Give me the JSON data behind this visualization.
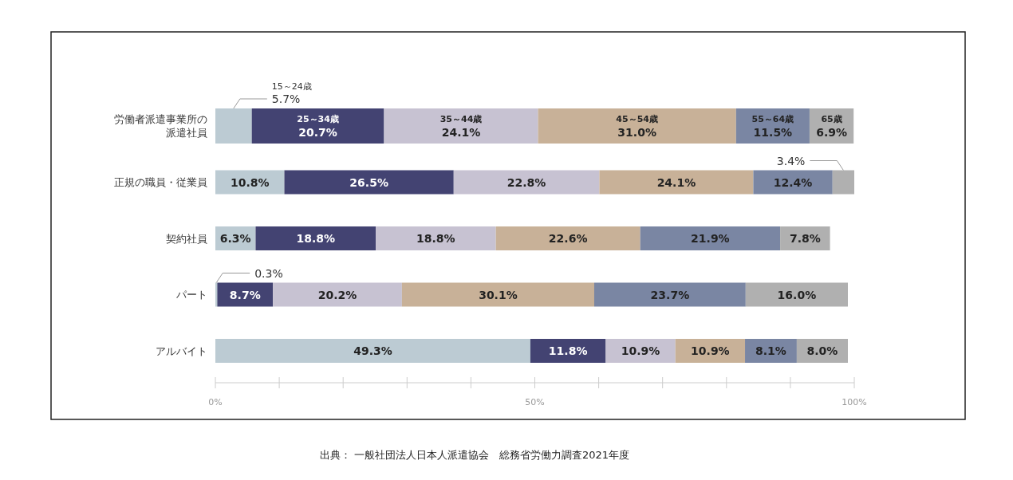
{
  "chart_data": {
    "type": "bar",
    "orientation": "horizontal",
    "stacked": true,
    "categories": [
      "労働者派遣事業所の派遣社員",
      "正規の職員・従業員",
      "契約社員",
      "パート",
      "アルバイト"
    ],
    "series": [
      {
        "name": "15～24歳",
        "color": "#bccbd3",
        "values": [
          5.7,
          10.8,
          6.3,
          0.3,
          49.3
        ],
        "value_labels": [
          "5.7%",
          "10.8%",
          "6.3%",
          "0.3%",
          "49.3%"
        ]
      },
      {
        "name": "25～34歳",
        "color": "#434372",
        "values": [
          20.7,
          26.5,
          18.8,
          8.7,
          11.8
        ],
        "value_labels": [
          "20.7%",
          "26.5%",
          "18.8%",
          "8.7%",
          "11.8%"
        ]
      },
      {
        "name": "35～44歳",
        "color": "#c7c2d2",
        "values": [
          24.1,
          22.8,
          18.8,
          20.2,
          10.9
        ],
        "value_labels": [
          "24.1%",
          "22.8%",
          "18.8%",
          "20.2%",
          "10.9%"
        ]
      },
      {
        "name": "45～54歳",
        "color": "#c8b198",
        "values": [
          31.0,
          24.1,
          22.6,
          30.1,
          10.9
        ],
        "value_labels": [
          "31.0%",
          "24.1%",
          "22.6%",
          "30.1%",
          "10.9%"
        ]
      },
      {
        "name": "55～64歳",
        "color": "#7a86a3",
        "values": [
          11.5,
          12.4,
          21.9,
          23.7,
          8.1
        ],
        "value_labels": [
          "11.5%",
          "12.4%",
          "21.9%",
          "23.7%",
          "8.1%"
        ]
      },
      {
        "name": "65歳",
        "color": "#b0b0b0",
        "values": [
          6.9,
          3.4,
          7.8,
          16.0,
          8.0
        ],
        "value_labels": [
          "6.9%",
          "3.4%",
          "7.8%",
          "16.0%",
          "8.0%"
        ]
      }
    ],
    "xlim": [
      0,
      100
    ],
    "xticks": [
      {
        "value": 0,
        "label": "0%"
      },
      {
        "value": 10,
        "label": null
      },
      {
        "value": 20,
        "label": null
      },
      {
        "value": 30,
        "label": null
      },
      {
        "value": 40,
        "label": null
      },
      {
        "value": 50,
        "label": "50%"
      },
      {
        "value": 60,
        "label": null
      },
      {
        "value": 70,
        "label": null
      },
      {
        "value": 80,
        "label": null
      },
      {
        "value": 90,
        "label": null
      },
      {
        "value": 100,
        "label": "100%"
      }
    ],
    "annotations": [
      "出典： 一般社団法人日本人派遣協会　総務省労働力調査2021年度"
    ]
  }
}
